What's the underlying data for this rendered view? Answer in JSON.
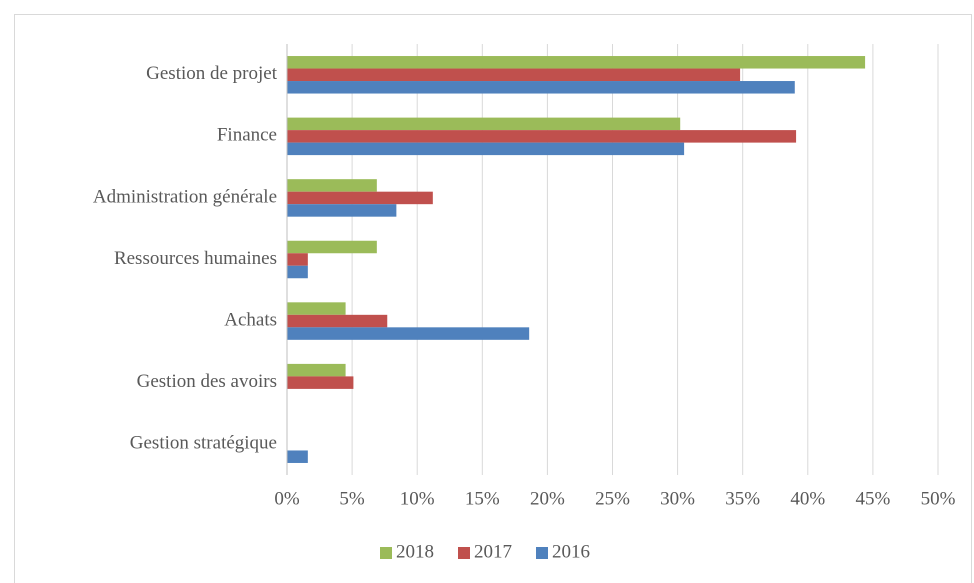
{
  "chart_data": {
    "type": "bar",
    "orientation": "horizontal",
    "categories": [
      "Gestion de projet",
      "Finance",
      "Administration générale",
      "Ressources humaines",
      "Achats",
      "Gestion des avoirs",
      "Gestion stratégique"
    ],
    "series": [
      {
        "name": "2018",
        "color": "#9bbb59",
        "values": [
          44.4,
          30.2,
          6.9,
          6.9,
          4.5,
          4.5,
          null
        ]
      },
      {
        "name": "2017",
        "color": "#c0504d",
        "values": [
          34.8,
          39.1,
          11.2,
          1.6,
          7.7,
          5.1,
          null
        ]
      },
      {
        "name": "2016",
        "color": "#4f81bd",
        "values": [
          39.0,
          30.5,
          8.4,
          1.6,
          18.6,
          null,
          1.6
        ]
      }
    ],
    "xlim": [
      0,
      50
    ],
    "xticks": [
      {
        "value": 0,
        "label": "0%"
      },
      {
        "value": 5,
        "label": "5%"
      },
      {
        "value": 10,
        "label": "10%"
      },
      {
        "value": 15,
        "label": "15%"
      },
      {
        "value": 20,
        "label": "20%"
      },
      {
        "value": 25,
        "label": "25%"
      },
      {
        "value": 30,
        "label": "30%"
      },
      {
        "value": 35,
        "label": "35%"
      },
      {
        "value": 40,
        "label": "40%"
      },
      {
        "value": 45,
        "label": "45%"
      },
      {
        "value": 50,
        "label": "50%"
      }
    ],
    "grid": true,
    "legend": "bottom"
  }
}
